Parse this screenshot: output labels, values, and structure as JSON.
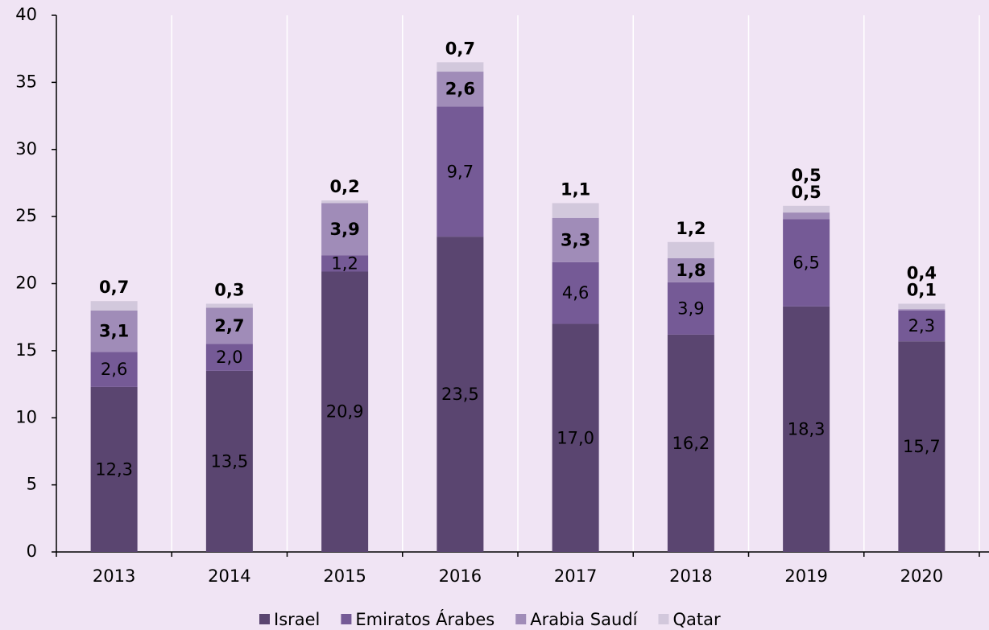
{
  "chart_data": {
    "type": "stacked_bar",
    "categories": [
      "2013",
      "2014",
      "2015",
      "2016",
      "2017",
      "2018",
      "2019",
      "2020"
    ],
    "series": [
      {
        "name": "Israel",
        "color": "#5a4570",
        "values": [
          12.3,
          13.5,
          20.9,
          23.5,
          17.0,
          16.2,
          18.3,
          15.7
        ],
        "value_labels": [
          "12,3",
          "13,5",
          "20,9",
          "23,5",
          "17,0",
          "16,2",
          "18,3",
          "15,7"
        ]
      },
      {
        "name": "Emiratos Árabes",
        "color": "#755a96",
        "values": [
          2.6,
          2.0,
          1.2,
          9.7,
          4.6,
          3.9,
          6.5,
          2.3
        ],
        "value_labels": [
          "2,6",
          "2,0",
          "1,2",
          "9,7",
          "4,6",
          "3,9",
          "6,5",
          "2,3"
        ]
      },
      {
        "name": "Arabia Saudí",
        "color": "#a08cb8",
        "values": [
          3.1,
          2.7,
          3.9,
          2.6,
          3.3,
          1.8,
          0.5,
          0.1
        ],
        "value_labels": [
          "3,1",
          "2,7",
          "3,9",
          "2,6",
          "3,3",
          "1,8",
          "0,5",
          "0,1"
        ]
      },
      {
        "name": "Qatar",
        "color": "#d2c8dc",
        "values": [
          0.7,
          0.3,
          0.2,
          0.7,
          1.1,
          1.2,
          0.5,
          0.4
        ],
        "value_labels": [
          "0,7",
          "0,3",
          "0,2",
          "0,7",
          "1,1",
          "1,2",
          "0,5",
          "0,4"
        ]
      }
    ],
    "ylim": [
      0,
      40
    ],
    "yticks": [
      0,
      5,
      10,
      15,
      20,
      25,
      30,
      35,
      40
    ],
    "legend": "bottom"
  }
}
